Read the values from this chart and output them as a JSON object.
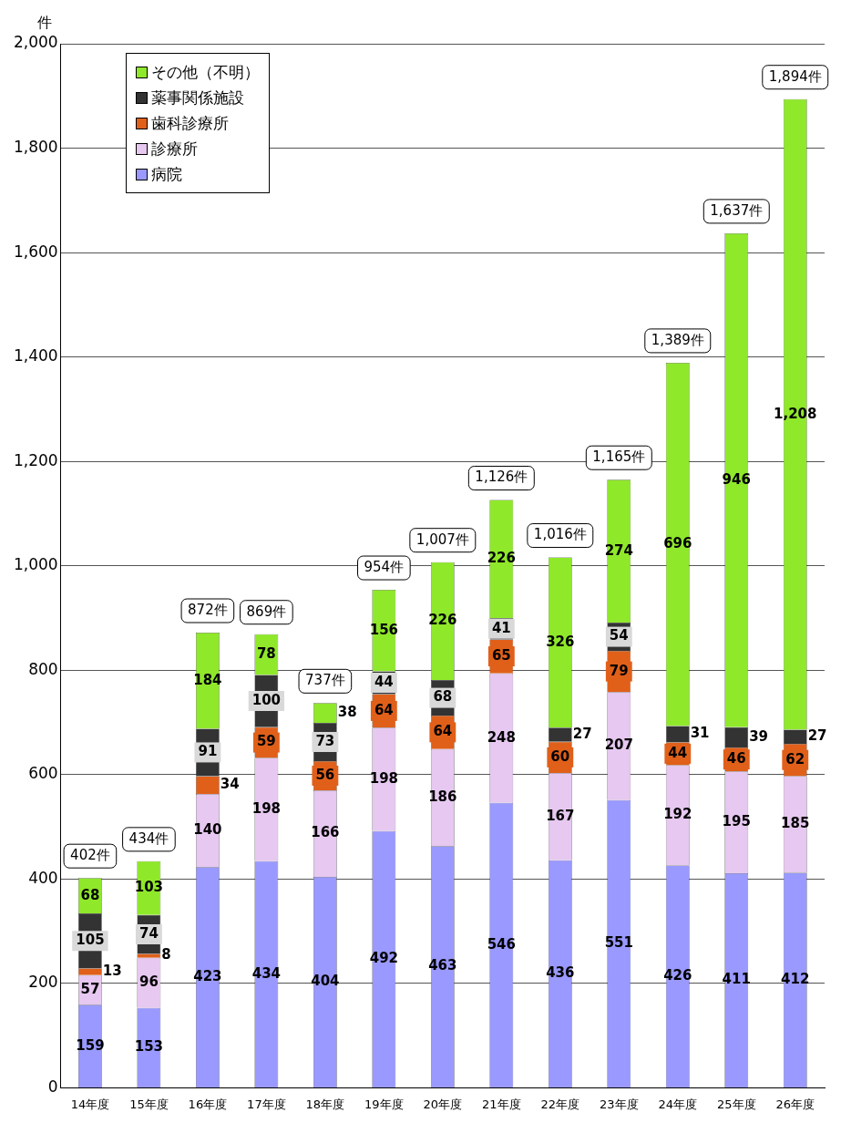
{
  "chart_data": {
    "type": "bar",
    "stacked": true,
    "ylabel": "件",
    "categories": [
      "14年度",
      "15年度",
      "16年度",
      "17年度",
      "18年度",
      "19年度",
      "20年度",
      "21年度",
      "22年度",
      "23年度",
      "24年度",
      "25年度",
      "26年度"
    ],
    "series": [
      {
        "name": "病院",
        "color": "#9999ff",
        "values": [
          159,
          153,
          423,
          434,
          404,
          492,
          463,
          546,
          436,
          551,
          426,
          411,
          412
        ],
        "value_labels": [
          "159",
          "153",
          "423",
          "434",
          "404",
          "492",
          "463",
          "546",
          "436",
          "551",
          "426",
          "411",
          "412"
        ]
      },
      {
        "name": "診療所",
        "color": "#e6c8f0",
        "values": [
          57,
          96,
          140,
          198,
          166,
          198,
          186,
          248,
          167,
          207,
          192,
          195,
          185
        ],
        "value_labels": [
          "57",
          "96",
          "140",
          "198",
          "166",
          "198",
          "186",
          "248",
          "167",
          "207",
          "192",
          "195",
          "185"
        ]
      },
      {
        "name": "歯科診療所",
        "color": "#e0601a",
        "values": [
          13,
          8,
          34,
          59,
          56,
          64,
          64,
          65,
          60,
          79,
          44,
          46,
          62
        ],
        "value_labels": [
          "13",
          "8",
          "34",
          "59",
          "56",
          "64",
          "64",
          "65",
          "60",
          "79",
          "44",
          "46",
          "62"
        ]
      },
      {
        "name": "薬事関係施設",
        "color": "#333333",
        "values": [
          105,
          74,
          91,
          100,
          73,
          44,
          68,
          41,
          27,
          54,
          31,
          39,
          27
        ],
        "value_labels": [
          "105",
          "74",
          "91",
          "100",
          "73",
          "44",
          "68",
          "41",
          "27",
          "54",
          "31",
          "39",
          "27"
        ]
      },
      {
        "name": "その他（不明）",
        "color": "#8fe82a",
        "values": [
          68,
          103,
          184,
          78,
          38,
          156,
          226,
          226,
          326,
          274,
          696,
          946,
          1208
        ],
        "value_labels": [
          "68",
          "103",
          "184",
          "78",
          "38",
          "156",
          "226",
          "226",
          "326",
          "274",
          "696",
          "946",
          "1,208"
        ]
      }
    ],
    "totals": [
      "402件",
      "434件",
      "872件",
      "869件",
      "737件",
      "954件",
      "1,007件",
      "1,126件",
      "1,016件",
      "1,165件",
      "1,389件",
      "1,637件",
      "1,894件"
    ],
    "ylim": [
      0,
      2000
    ],
    "yticks": [
      {
        "value": 0,
        "label": "0"
      },
      {
        "value": 200,
        "label": "200"
      },
      {
        "value": 400,
        "label": "400"
      },
      {
        "value": 600,
        "label": "600"
      },
      {
        "value": 800,
        "label": "800"
      },
      {
        "value": 1000,
        "label": "1,000"
      },
      {
        "value": 1200,
        "label": "1,200"
      },
      {
        "value": 1400,
        "label": "1,400"
      },
      {
        "value": 1600,
        "label": "1,600"
      },
      {
        "value": 1800,
        "label": "1,800"
      },
      {
        "value": 2000,
        "label": "2,000"
      }
    ],
    "grid": "y",
    "legend": "top left"
  }
}
